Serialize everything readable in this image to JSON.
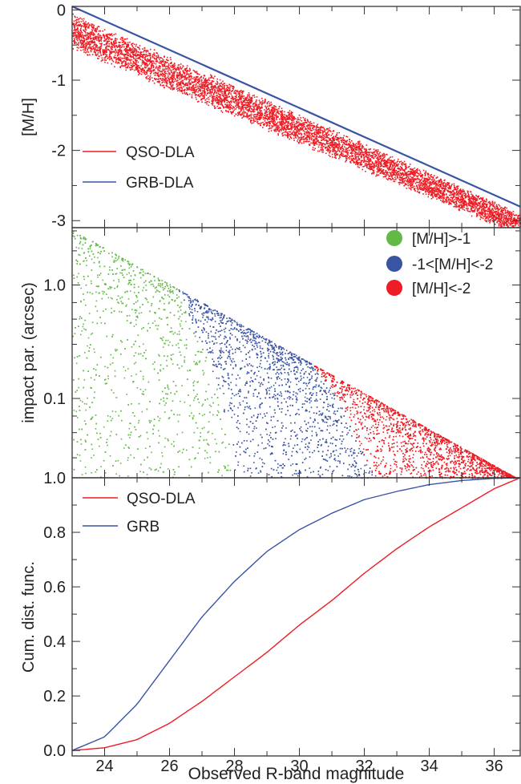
{
  "chart_data": [
    {
      "type": "scatter",
      "ylabel": "[M/H]",
      "xlim": [
        23,
        36.8
      ],
      "ylim": [
        -3.1,
        0.05
      ],
      "yticks": [
        {
          "v": 0,
          "label": "0"
        },
        {
          "v": -1,
          "label": "-1"
        },
        {
          "v": -2,
          "label": "-2"
        },
        {
          "v": -3,
          "label": "-3"
        }
      ],
      "series": [
        {
          "name": "QSO-DLA",
          "color": "#ee1c24",
          "kind": "points",
          "band_upper": [
            [
              23,
              0.0
            ],
            [
              36.8,
              -2.85
            ]
          ],
          "scatter_depth": [
            0.4,
            0.25
          ]
        },
        {
          "name": "GRB-DLA",
          "color": "#3a54a4",
          "kind": "line",
          "x": [
            23,
            36.8
          ],
          "y": [
            0.05,
            -2.8
          ]
        }
      ],
      "legend": "lower-left"
    },
    {
      "type": "scatter",
      "ylabel": "impact par. (arcsec)",
      "ylog": true,
      "xlim": [
        23,
        36.8
      ],
      "ylim": [
        0.02,
        3.2
      ],
      "yticks": [
        {
          "v": 1.0,
          "label": "1.0"
        },
        {
          "v": 0.1,
          "label": "0.1"
        }
      ],
      "upper_envelope": {
        "x": [
          23,
          36.8
        ],
        "y": [
          3.2,
          0.02
        ]
      },
      "class_boundaries": [
        {
          "between": "[M/H]>-1 / -1<[M/H]<-2",
          "x": [
            25.1,
            26.2,
            27.4,
            28.0
          ],
          "y": [
            1.8,
            1.0,
            0.15,
            0.03
          ]
        },
        {
          "between": "-1<[M/H]<-2 / [M/H]<-2",
          "x": [
            30.0,
            31.2,
            32.3
          ],
          "y": [
            0.28,
            0.1,
            0.02
          ]
        }
      ],
      "series": [
        {
          "name": "[M/H]>-1",
          "color": "#62b946"
        },
        {
          "name": "-1<[M/H]<-2",
          "color": "#3a54a4"
        },
        {
          "name": "[M/H]<-2",
          "color": "#ee1c24"
        }
      ],
      "legend": "top-right"
    },
    {
      "type": "line",
      "ylabel": "Cum. dist. func.",
      "xlabel": "Observed R-band magnitude",
      "xlim": [
        23,
        36.8
      ],
      "ylim": [
        -0.02,
        1.0
      ],
      "xticks": [
        24,
        26,
        28,
        30,
        32,
        34,
        36
      ],
      "yticks": [
        {
          "v": 0.0,
          "label": "0.0"
        },
        {
          "v": 0.2,
          "label": "0.2"
        },
        {
          "v": 0.4,
          "label": "0.4"
        },
        {
          "v": 0.6,
          "label": "0.6"
        },
        {
          "v": 0.8,
          "label": "0.8"
        },
        {
          "v": 1.0,
          "label": "1.0"
        }
      ],
      "series": [
        {
          "name": "QSO-DLA",
          "color": "#ee1c24",
          "x": [
            23,
            24,
            25,
            26,
            27,
            28,
            29,
            30,
            31,
            32,
            33,
            34,
            35,
            36,
            36.8
          ],
          "y": [
            0.0,
            0.01,
            0.04,
            0.1,
            0.18,
            0.27,
            0.36,
            0.46,
            0.55,
            0.65,
            0.74,
            0.82,
            0.89,
            0.96,
            1.0
          ]
        },
        {
          "name": "GRB",
          "color": "#3a54a4",
          "x": [
            23,
            24,
            25,
            26,
            27,
            28,
            29,
            30,
            31,
            32,
            33,
            34,
            35,
            36,
            36.8
          ],
          "y": [
            0.0,
            0.05,
            0.17,
            0.33,
            0.49,
            0.62,
            0.73,
            0.81,
            0.87,
            0.92,
            0.95,
            0.975,
            0.99,
            0.998,
            1.0
          ]
        }
      ],
      "legend": "top-left"
    }
  ]
}
